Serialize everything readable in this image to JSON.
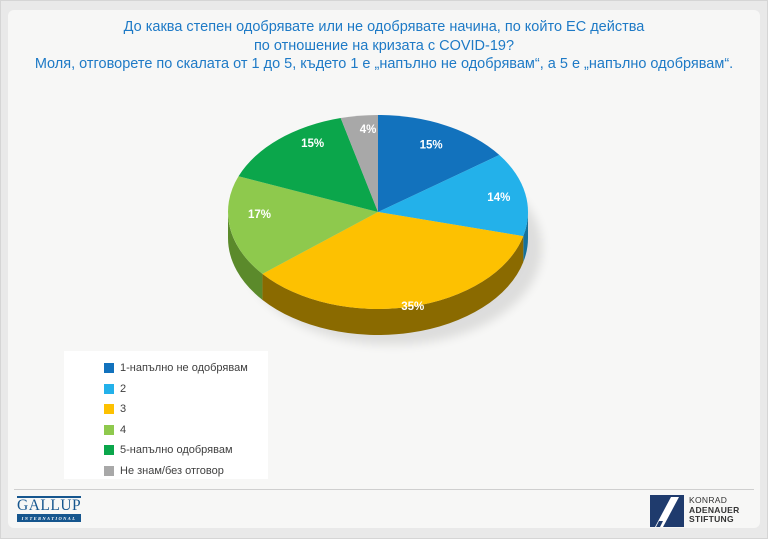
{
  "page": {
    "background_color": "#e9e9e9",
    "slide_background_color": "#f7f7f6"
  },
  "title": {
    "line1": "До каква степен одобрявате или не одобрявате начина, по който ЕС действа",
    "line2": "по отношение на кризата с COVID-19?",
    "line3": "Моля, отговорете по скалата от 1 до 5, където 1 е „напълно не одобрявам“, а 5 е „напълно одобрявам“.",
    "color": "#1e7ac6"
  },
  "chart_data": {
    "type": "pie",
    "style": "3d",
    "title": "До каква степен одобрявате или не одобрявате начина, по който ЕС действа по отношение на кризата с COVID-19?",
    "subtitle": "Моля, отговорете по скалата от 1 до 5, където 1 е „напълно не одобрявам“, а 5 е „напълно одобрявам“.",
    "unit": "%",
    "start_angle_deg": 0,
    "direction": "clockwise",
    "legend_position": "bottom-left",
    "slices": [
      {
        "label": "1-напълно не одобрявам",
        "value": 15,
        "data_label": "15%",
        "color": "#1272bd",
        "side_color": "#0b4a7c"
      },
      {
        "label": "2",
        "value": 14,
        "data_label": "14%",
        "color": "#23b1ea",
        "side_color": "#15719a"
      },
      {
        "label": "3",
        "value": 35,
        "data_label": "35%",
        "color": "#fdc101",
        "side_color": "#8a6a00"
      },
      {
        "label": "4",
        "value": 17,
        "data_label": "17%",
        "color": "#8ec94d",
        "side_color": "#5b8a2b"
      },
      {
        "label": "5-напълно одобрявам",
        "value": 15,
        "data_label": "15%",
        "color": "#0ba64b",
        "side_color": "#076b30"
      },
      {
        "label": "Не знам/без отговор",
        "value": 4,
        "data_label": "4%",
        "color": "#a8a8a8",
        "side_color": "#6e6e6e"
      }
    ]
  },
  "footer": {
    "gallup_logo": {
      "name": "GALLUP",
      "subname": "INTERNATIONAL",
      "color": "#16568e"
    },
    "kas_logo": {
      "line1": "KONRAD",
      "line2": "ADENAUER",
      "line3": "STIFTUNG",
      "emblem_color": "#1f3b6d"
    }
  }
}
